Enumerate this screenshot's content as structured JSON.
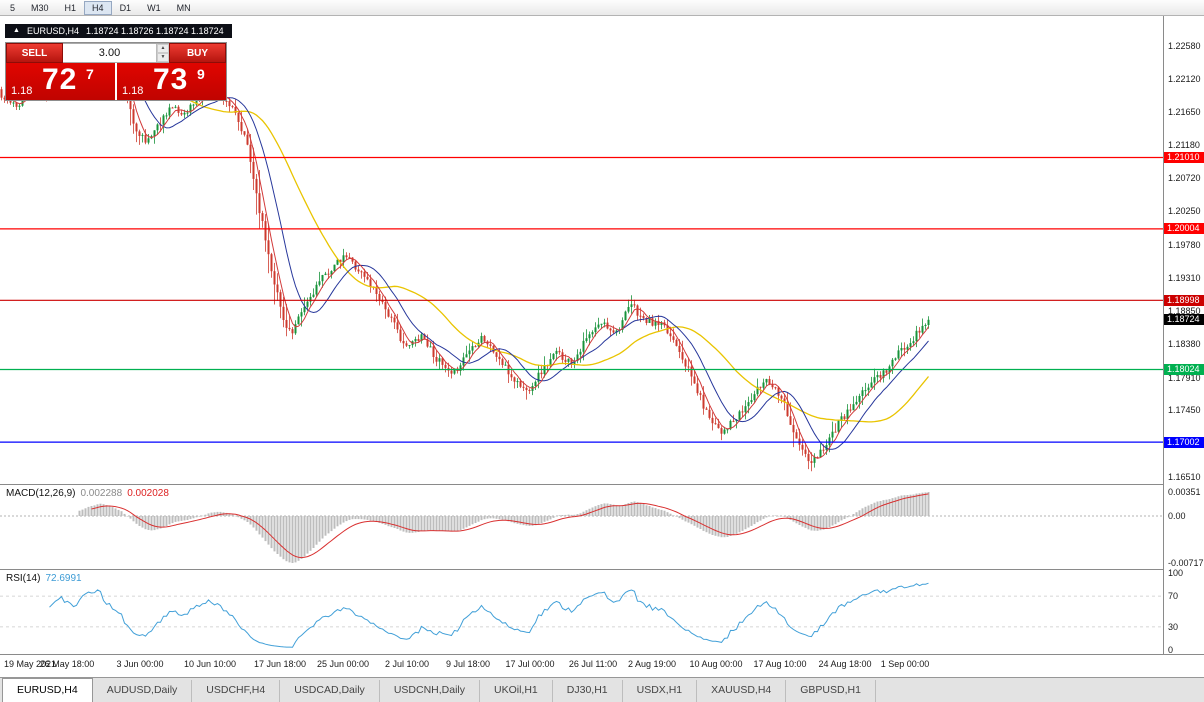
{
  "toolbar": {
    "timeframes": [
      "5",
      "M30",
      "H1",
      "H4",
      "D1",
      "W1",
      "MN"
    ],
    "active": "H4"
  },
  "quote_bar": {
    "symbol": "EURUSD,H4",
    "ohlc": "1.18724 1.18726 1.18724 1.18724"
  },
  "trade_panel": {
    "sell_label": "SELL",
    "buy_label": "BUY",
    "volume": "3.00",
    "sell_price": {
      "prefix": "1.18",
      "big": "72",
      "sup": "7"
    },
    "buy_price": {
      "prefix": "1.18",
      "big": "73",
      "sup": "9"
    }
  },
  "icons": {
    "quote_marker": "▲",
    "spin_up": "▲",
    "spin_down": "▼"
  },
  "price_scale": [
    "1.22580",
    "1.22120",
    "1.21650",
    "1.21180",
    "1.20720",
    "1.20250",
    "1.19780",
    "1.19310",
    "1.18850",
    "1.18380",
    "1.17910",
    "1.17450",
    "1.16980",
    "1.16510"
  ],
  "levels": [
    {
      "value": 1.2101,
      "label": "1.21010",
      "color": "#ff0000"
    },
    {
      "value": 1.20004,
      "label": "1.20004",
      "color": "#ff0000"
    },
    {
      "value": 1.18998,
      "label": "1.18998",
      "color": "#cc0000"
    },
    {
      "value": 1.18024,
      "label": "1.18024",
      "color": "#00b050"
    },
    {
      "value": 1.17002,
      "label": "1.17002",
      "color": "#0000ff"
    }
  ],
  "current_price": {
    "value": 1.18724,
    "label": "1.18724",
    "bg": "#000000",
    "text": "#ffffff"
  },
  "indicators": {
    "macd": {
      "name": "MACD(12,26,9)",
      "value_main": "0.002288",
      "value_signal": "0.002028",
      "axis": [
        "0.00351",
        "0.00",
        "-0.00717"
      ]
    },
    "rsi": {
      "name": "RSI(14)",
      "value": "72.6991",
      "axis": [
        "100",
        "70",
        "30",
        "0"
      ],
      "levels": [
        70,
        30
      ]
    }
  },
  "time_axis": [
    "19 May 2021",
    "26 May 18:00",
    "3 Jun 00:00",
    "10 Jun 10:00",
    "17 Jun 18:00",
    "25 Jun 00:00",
    "2 Jul 10:00",
    "9 Jul 18:00",
    "17 Jul 00:00",
    "26 Jul 11:00",
    "2 Aug 19:00",
    "10 Aug 00:00",
    "17 Aug 10:00",
    "24 Aug 18:00",
    "1 Sep 00:00"
  ],
  "tabs": [
    {
      "label": "EURUSD,H4",
      "active": true
    },
    {
      "label": "AUDUSD,Daily",
      "active": false
    },
    {
      "label": "USDCHF,H4",
      "active": false
    },
    {
      "label": "USDCAD,Daily",
      "active": false
    },
    {
      "label": "USDCNH,Daily",
      "active": false
    },
    {
      "label": "UKOil,H1",
      "active": false
    },
    {
      "label": "DJ30,H1",
      "active": false
    },
    {
      "label": "USDX,H1",
      "active": false
    },
    {
      "label": "XAUUSD,H4",
      "active": false
    },
    {
      "label": "GBPUSD,H1",
      "active": false
    }
  ],
  "colors": {
    "candle_up": "#17933a",
    "candle_down": "#cd3a2e",
    "ma_fast": "#d23a3a",
    "ma_mid": "#27379b",
    "ma_slow": "#e9c400",
    "macd_hist": "#bdbdbd",
    "macd_signal": "#d93030",
    "rsi_line": "#42a0d8"
  },
  "chart_data": {
    "type": "candlestick",
    "symbol": "EURUSD",
    "timeframe": "H4",
    "title": "EURUSD,H4",
    "y_range": [
      1.1651,
      1.2258
    ],
    "x_range": [
      "19 May 2021",
      "3 Sep 2021"
    ],
    "last_price": 1.18724,
    "horizontal_levels": [
      1.2101,
      1.20004,
      1.18998,
      1.18024,
      1.17002
    ],
    "num_candles": 310,
    "close_anchors": [
      [
        0,
        1.2185
      ],
      [
        5,
        1.2172
      ],
      [
        10,
        1.2205
      ],
      [
        15,
        1.2192
      ],
      [
        20,
        1.2215
      ],
      [
        25,
        1.2202
      ],
      [
        28,
        1.2238
      ],
      [
        32,
        1.225
      ],
      [
        36,
        1.2232
      ],
      [
        40,
        1.2212
      ],
      [
        44,
        1.215
      ],
      [
        48,
        1.2122
      ],
      [
        52,
        1.2145
      ],
      [
        56,
        1.2172
      ],
      [
        60,
        1.2162
      ],
      [
        65,
        1.218
      ],
      [
        70,
        1.2196
      ],
      [
        75,
        1.2182
      ],
      [
        78,
        1.216
      ],
      [
        82,
        1.2118
      ],
      [
        86,
        1.2028
      ],
      [
        90,
        1.1945
      ],
      [
        94,
        1.1872
      ],
      [
        97,
        1.1852
      ],
      [
        100,
        1.1882
      ],
      [
        105,
        1.192
      ],
      [
        110,
        1.1945
      ],
      [
        115,
        1.1962
      ],
      [
        118,
        1.1948
      ],
      [
        122,
        1.1928
      ],
      [
        126,
        1.1905
      ],
      [
        130,
        1.1872
      ],
      [
        135,
        1.1832
      ],
      [
        140,
        1.1852
      ],
      [
        145,
        1.1818
      ],
      [
        150,
        1.1792
      ],
      [
        155,
        1.1825
      ],
      [
        160,
        1.185
      ],
      [
        165,
        1.1822
      ],
      [
        170,
        1.1792
      ],
      [
        175,
        1.1772
      ],
      [
        180,
        1.18
      ],
      [
        185,
        1.1826
      ],
      [
        190,
        1.1812
      ],
      [
        195,
        1.1845
      ],
      [
        200,
        1.1868
      ],
      [
        205,
        1.1856
      ],
      [
        210,
        1.1894
      ],
      [
        214,
        1.1872
      ],
      [
        220,
        1.1864
      ],
      [
        225,
        1.184
      ],
      [
        230,
        1.1792
      ],
      [
        235,
        1.1742
      ],
      [
        240,
        1.1716
      ],
      [
        245,
        1.1732
      ],
      [
        250,
        1.1762
      ],
      [
        255,
        1.179
      ],
      [
        260,
        1.1766
      ],
      [
        265,
        1.1702
      ],
      [
        270,
        1.1668
      ],
      [
        275,
        1.17
      ],
      [
        280,
        1.1732
      ],
      [
        285,
        1.1756
      ],
      [
        290,
        1.1786
      ],
      [
        295,
        1.1802
      ],
      [
        300,
        1.183
      ],
      [
        305,
        1.1852
      ],
      [
        309,
        1.18724
      ]
    ],
    "spikes": [
      [
        31,
        "h",
        1.2256
      ],
      [
        97,
        "l",
        1.1845
      ],
      [
        175,
        "l",
        1.176
      ],
      [
        210,
        "h",
        1.1907
      ],
      [
        240,
        "l",
        1.1703
      ],
      [
        270,
        "l",
        1.1659
      ]
    ],
    "moving_averages": [
      {
        "period": 5,
        "color": "#d23a3a"
      },
      {
        "period": 13,
        "color": "#27379b"
      },
      {
        "period": 34,
        "color": "#e9c400"
      }
    ]
  }
}
